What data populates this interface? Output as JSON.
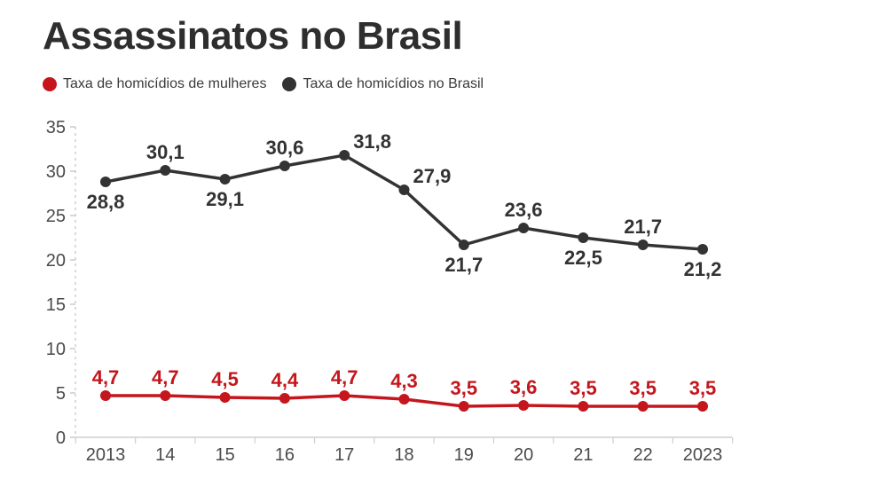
{
  "chart_data": {
    "type": "line",
    "title": "Assassinatos no Brasil",
    "categories": [
      "2013",
      "14",
      "15",
      "16",
      "17",
      "18",
      "19",
      "20",
      "21",
      "22",
      "2023"
    ],
    "ylim": [
      0,
      35
    ],
    "yticks": [
      "0",
      "5",
      "10",
      "15",
      "20",
      "25",
      "30",
      "35"
    ],
    "legend_position": "top-left",
    "grid": false,
    "series": [
      {
        "name": "Taxa de homicídios de mulheres",
        "color": "#c4161c",
        "values": [
          4.7,
          4.7,
          4.5,
          4.4,
          4.7,
          4.3,
          3.5,
          3.6,
          3.5,
          3.5,
          3.5
        ],
        "labels": [
          "4,7",
          "4,7",
          "4,5",
          "4,4",
          "4,7",
          "4,3",
          "3,5",
          "3,6",
          "3,5",
          "3,5",
          "3,5"
        ]
      },
      {
        "name": "Taxa de homicídios no Brasil",
        "color": "#333333",
        "values": [
          28.8,
          30.1,
          29.1,
          30.6,
          31.8,
          27.9,
          21.7,
          23.6,
          22.5,
          21.7,
          21.2
        ],
        "labels": [
          "28,8",
          "30,1",
          "29,1",
          "30,6",
          "31,8",
          "27,9",
          "21,7",
          "23,6",
          "22,5",
          "21,7",
          "21,2"
        ],
        "label_positions": [
          "below",
          "above",
          "below",
          "above",
          "right",
          "right",
          "below",
          "above",
          "below",
          "above",
          "below"
        ]
      }
    ]
  }
}
